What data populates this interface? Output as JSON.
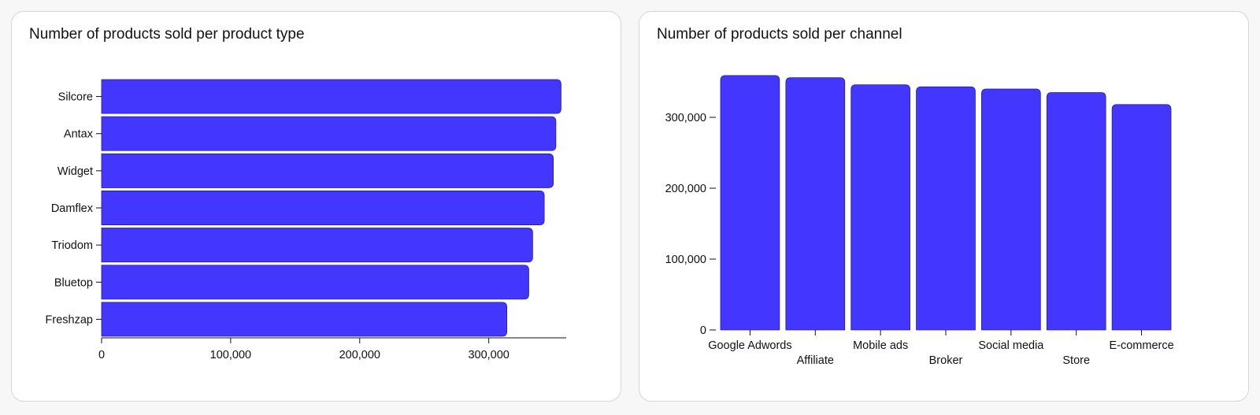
{
  "chart_data": [
    {
      "type": "bar",
      "orientation": "horizontal",
      "title": "Number of products sold per product type",
      "categories": [
        "Silcore",
        "Antax",
        "Widget",
        "Damflex",
        "Triodom",
        "Bluetop",
        "Freshzap"
      ],
      "values": [
        356000,
        352000,
        350000,
        343000,
        334000,
        331000,
        314000
      ],
      "xlim": [
        0,
        360000
      ],
      "x_ticks": [
        0,
        100000,
        200000,
        300000
      ],
      "x_tick_labels": [
        "0",
        "100,000",
        "200,000",
        "300,000"
      ],
      "xlabel": "",
      "ylabel": "",
      "grid": false,
      "legend": "none",
      "bar_color": "#4236ff"
    },
    {
      "type": "bar",
      "orientation": "vertical",
      "title": "Number of products sold per channel",
      "categories": [
        "Google Adwords",
        "Affiliate",
        "Mobile ads",
        "Broker",
        "Social media",
        "Store",
        "E-commerce"
      ],
      "values": [
        359000,
        356000,
        346000,
        343000,
        340000,
        335000,
        318000
      ],
      "ylim": [
        0,
        360000
      ],
      "y_ticks": [
        0,
        100000,
        200000,
        300000
      ],
      "y_tick_labels": [
        "0",
        "100,000",
        "200,000",
        "300,000"
      ],
      "xlabel": "",
      "ylabel": "",
      "grid": false,
      "legend": "none",
      "bar_color": "#4236ff"
    }
  ]
}
